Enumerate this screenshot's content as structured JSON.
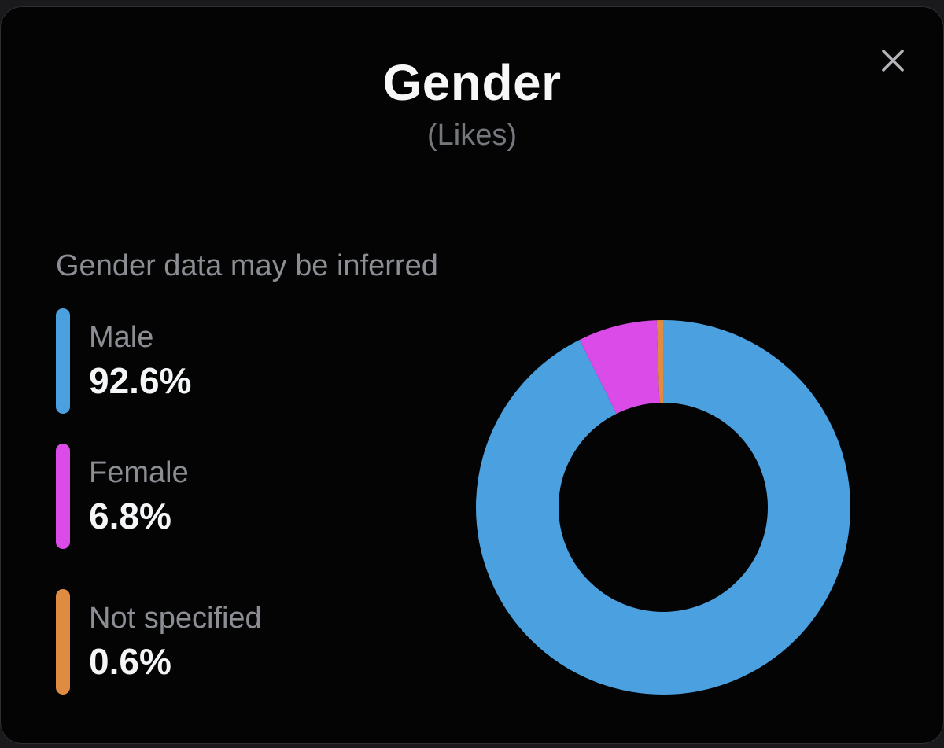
{
  "modal": {
    "title": "Gender",
    "subtitle": "(Likes)",
    "note": "Gender data may be inferred"
  },
  "icons": {
    "close": "✕"
  },
  "colors": {
    "background": "#040405",
    "page_background": "#1a1a1c",
    "title_text": "#f7f7f8",
    "muted_text": "#8b8e93",
    "subtitle_text": "#74777c",
    "value_text": "#f4f5f6",
    "male": "#4ba0e0",
    "female": "#da4be8",
    "not_specified": "#e08b42"
  },
  "legend": {
    "items": [
      {
        "label": "Male",
        "value": "92.6%",
        "color": "#4ba0e0"
      },
      {
        "label": "Female",
        "value": "6.8%",
        "color": "#da4be8"
      },
      {
        "label": "Not specified",
        "value": "0.6%",
        "color": "#e08b42"
      }
    ]
  },
  "chart_data": {
    "type": "pie",
    "variant": "donut",
    "title": "Gender",
    "subtitle": "(Likes)",
    "categories": [
      "Male",
      "Female",
      "Not specified"
    ],
    "values": [
      92.6,
      6.8,
      0.6
    ],
    "unit": "%",
    "colors": [
      "#4ba0e0",
      "#da4be8",
      "#e08b42"
    ],
    "start_angle_deg": -90,
    "direction": "clockwise",
    "inner_radius_ratio": 0.56,
    "legend_position": "left",
    "annotations": [
      "Gender data may be inferred"
    ]
  }
}
